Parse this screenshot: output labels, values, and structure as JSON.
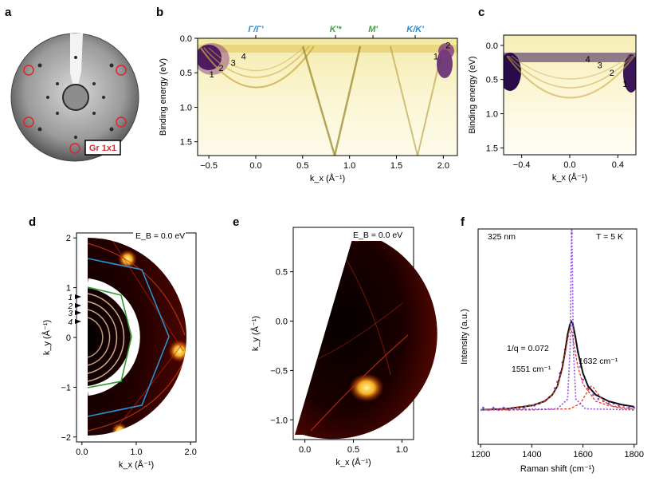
{
  "panel_labels": [
    "a",
    "b",
    "c",
    "d",
    "e",
    "f"
  ],
  "colors": {
    "high_symmetry_blue": "#2a8fd6",
    "high_symmetry_green": "#3aa83a",
    "bz_blue": "#2b8fd3",
    "bz_green": "#2d9a2d",
    "leed_marker": "#e0242a",
    "fit_line": "#111111",
    "data_points": "#8f4fe0",
    "component": "#e23a2a"
  },
  "panel_a": {
    "label": "Gr 1x1"
  },
  "chart_data": [
    {
      "panel": "b",
      "type": "heatmap",
      "xlabel": "k_x (Å⁻¹)",
      "ylabel": "Binding energy (eV)",
      "xlim": [
        -0.62,
        2.15
      ],
      "ylim": [
        0.0,
        1.7
      ],
      "y_inverted": true,
      "x_ticks": [
        -0.5,
        0.0,
        0.5,
        1.0,
        1.5,
        2.0
      ],
      "x_tick_labels": [
        "−0.5",
        "0.0",
        "0.5",
        "1.0",
        "1.5",
        "2.0"
      ],
      "y_ticks": [
        0.0,
        0.5,
        1.0,
        1.5
      ],
      "y_tick_labels": [
        "0.0",
        "0.5",
        "1.0",
        "1.5"
      ],
      "top_markers": [
        {
          "x": 0.0,
          "label": "Γ/Γ'",
          "color": "#2a8fd6"
        },
        {
          "x": 0.85,
          "label": "K'*",
          "color": "#3aa83a"
        },
        {
          "x": 1.25,
          "label": "M'",
          "color": "#3aa83a"
        },
        {
          "x": 1.7,
          "label": "K/K'",
          "color": "#2a8fd6"
        }
      ],
      "annotations": [
        {
          "text": "1",
          "x": -0.47,
          "y": 0.52
        },
        {
          "text": "2",
          "x": -0.37,
          "y": 0.43
        },
        {
          "text": "3",
          "x": -0.24,
          "y": 0.35
        },
        {
          "text": "4",
          "x": -0.13,
          "y": 0.26
        },
        {
          "text": "1",
          "x": 1.92,
          "y": 0.26
        },
        {
          "text": "2",
          "x": 2.05,
          "y": 0.1
        }
      ]
    },
    {
      "panel": "c",
      "type": "heatmap",
      "xlabel": "k_x (Å⁻¹)",
      "ylabel": "Binding energy (eV)",
      "xlim": [
        -0.55,
        0.55
      ],
      "ylim": [
        -0.15,
        1.6
      ],
      "y_inverted": true,
      "x_ticks": [
        -0.4,
        0.0,
        0.4
      ],
      "x_tick_labels": [
        "−0.4",
        "0.0",
        "0.4"
      ],
      "y_ticks": [
        0.0,
        0.5,
        1.0,
        1.5
      ],
      "y_tick_labels": [
        "0.0",
        "0.5",
        "1.0",
        "1.5"
      ],
      "annotations": [
        {
          "text": "4",
          "x": 0.15,
          "y": 0.2
        },
        {
          "text": "3",
          "x": 0.25,
          "y": 0.29
        },
        {
          "text": "2",
          "x": 0.35,
          "y": 0.4
        },
        {
          "text": "1",
          "x": 0.46,
          "y": 0.56
        }
      ]
    },
    {
      "panel": "d",
      "type": "heatmap",
      "title": "E_B = 0.0 eV",
      "xlabel": "k_x (Å⁻¹)",
      "ylabel": "k_y (Å⁻¹)",
      "xlim": [
        -0.1,
        2.1
      ],
      "ylim": [
        -2.1,
        2.1
      ],
      "x_ticks": [
        0.0,
        1.0,
        2.0
      ],
      "x_tick_labels": [
        "0.0",
        "1.0",
        "2.0"
      ],
      "y_ticks": [
        -2,
        -1,
        0,
        1,
        2
      ],
      "y_tick_labels": [
        "−2",
        "−1",
        "0",
        "1",
        "2"
      ],
      "arrow_labels": [
        "1",
        "2",
        "3",
        "4"
      ]
    },
    {
      "panel": "e",
      "type": "heatmap",
      "title": "E_B = 0.0 eV",
      "xlabel": "k_x (Å⁻¹)",
      "ylabel": "k_y (Å⁻¹)",
      "xlim": [
        -0.12,
        1.12
      ],
      "ylim": [
        -1.2,
        0.95
      ],
      "x_ticks": [
        0.0,
        0.5,
        1.0
      ],
      "x_tick_labels": [
        "0.0",
        "0.5",
        "1.0"
      ],
      "y_ticks": [
        0.5,
        0.0,
        -0.5,
        -1.0
      ],
      "y_tick_labels": [
        "0.5",
        "0.0",
        "−0.5",
        "−1.0"
      ]
    },
    {
      "panel": "f",
      "type": "scatter",
      "xlabel": "Raman shift (cm⁻¹)",
      "ylabel": "Intensity (a.u.)",
      "xlim": [
        1190,
        1810
      ],
      "ylim": [
        0.0,
        1.0
      ],
      "x_ticks": [
        1200,
        1400,
        1600,
        1800
      ],
      "x_tick_labels": [
        "1200",
        "1400",
        "1600",
        "1800"
      ],
      "texts": {
        "wavelength": "325 nm",
        "temperature": "T = 5 K",
        "q_factor": "1/q = 0.072",
        "peak_1": "1551 cm⁻¹",
        "peak_2": "1632 cm⁻¹"
      },
      "series": [
        {
          "style": "points",
          "x": [
            1210,
            1230,
            1250,
            1270,
            1290,
            1310,
            1330,
            1350,
            1370,
            1390,
            1410,
            1430,
            1450,
            1470,
            1490,
            1500,
            1510,
            1520,
            1530,
            1540,
            1550,
            1556,
            1560,
            1570,
            1580,
            1590,
            1600,
            1620,
            1640,
            1660,
            1680,
            1700,
            1720,
            1740,
            1760,
            1780,
            1800
          ],
          "y": [
            0.17,
            0.16,
            0.17,
            0.16,
            0.17,
            0.16,
            0.17,
            0.17,
            0.17,
            0.18,
            0.18,
            0.19,
            0.2,
            0.22,
            0.26,
            0.29,
            0.33,
            0.38,
            0.44,
            0.5,
            0.55,
            0.98,
            0.55,
            0.5,
            0.43,
            0.36,
            0.3,
            0.26,
            0.23,
            0.21,
            0.2,
            0.19,
            0.19,
            0.18,
            0.18,
            0.17,
            0.17
          ]
        },
        {
          "style": "fit",
          "x": [
            1200,
            1300,
            1400,
            1450,
            1480,
            1500,
            1520,
            1530,
            1540,
            1550,
            1555,
            1560,
            1570,
            1580,
            1600,
            1620,
            1650,
            1700,
            1750,
            1800
          ],
          "y": [
            0.16,
            0.165,
            0.18,
            0.2,
            0.23,
            0.27,
            0.36,
            0.43,
            0.51,
            0.56,
            0.57,
            0.56,
            0.5,
            0.43,
            0.33,
            0.27,
            0.23,
            0.2,
            0.185,
            0.175
          ]
        },
        {
          "style": "component",
          "x": [
            1200,
            1300,
            1400,
            1450,
            1480,
            1500,
            1520,
            1535,
            1545,
            1550,
            1555,
            1565,
            1580,
            1600,
            1650,
            1700,
            1800
          ],
          "y": [
            0.16,
            0.165,
            0.18,
            0.2,
            0.23,
            0.27,
            0.35,
            0.45,
            0.52,
            0.54,
            0.53,
            0.46,
            0.36,
            0.28,
            0.2,
            0.18,
            0.165
          ]
        },
        {
          "style": "component",
          "x": [
            1200,
            1400,
            1550,
            1590,
            1610,
            1625,
            1632,
            1640,
            1655,
            1680,
            1720,
            1760,
            1800
          ],
          "y": [
            0.16,
            0.16,
            0.165,
            0.19,
            0.23,
            0.26,
            0.27,
            0.265,
            0.24,
            0.2,
            0.175,
            0.165,
            0.16
          ]
        },
        {
          "style": "sharp_line",
          "x": [
            1200,
            1500,
            1540,
            1550,
            1553,
            1556,
            1559,
            1562,
            1572,
            1610,
            1800
          ],
          "y": [
            0.16,
            0.165,
            0.21,
            0.45,
            0.8,
            1.0,
            0.8,
            0.45,
            0.21,
            0.165,
            0.16
          ]
        }
      ]
    }
  ]
}
